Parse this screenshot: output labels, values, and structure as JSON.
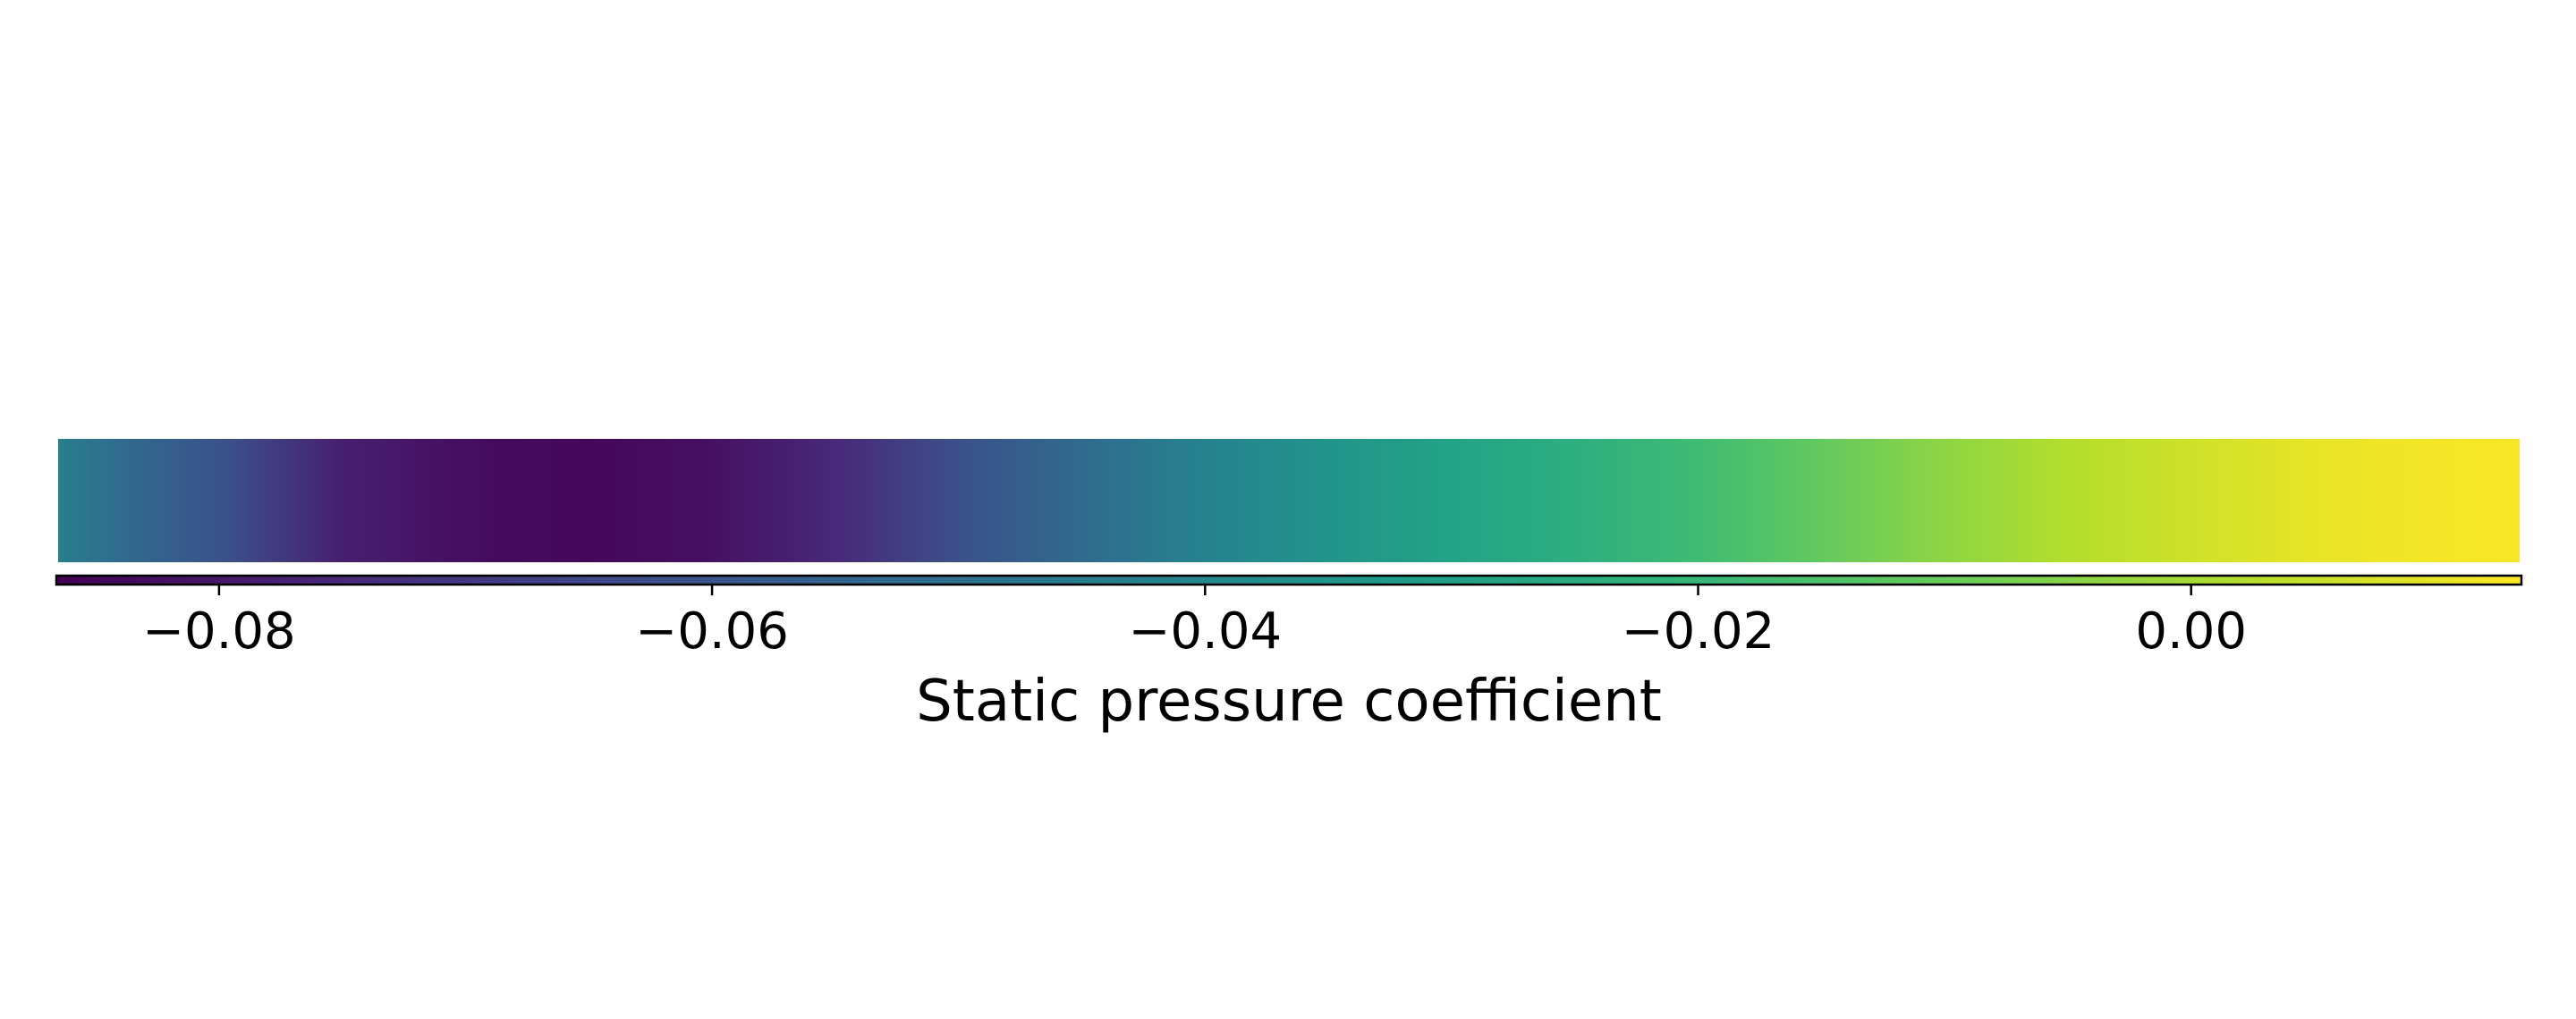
{
  "chart_data": {
    "type": "heatmap",
    "colormap": "viridis",
    "colorbar_label": "Static pressure coefficient",
    "xlim": [
      -0.0866,
      0.0134
    ],
    "xticks": [
      -0.08,
      -0.06,
      -0.04,
      -0.02,
      0.0
    ],
    "xtick_labels": [
      "−0.08",
      "−0.06",
      "−0.04",
      "−0.02",
      "0.00"
    ],
    "pressure_strip": {
      "x": [
        -0.0866,
        -0.084,
        -0.08,
        -0.075,
        -0.07,
        -0.065,
        -0.06,
        -0.055,
        -0.05,
        -0.045,
        -0.04,
        -0.035,
        -0.03,
        -0.025,
        -0.02,
        -0.015,
        -0.01,
        -0.005,
        0.0,
        0.005,
        0.01,
        0.0134
      ],
      "value": [
        -0.044,
        -0.052,
        -0.061,
        -0.078,
        -0.083,
        -0.085,
        -0.082,
        -0.075,
        -0.062,
        -0.052,
        -0.042,
        -0.035,
        -0.029,
        -0.024,
        -0.018,
        -0.011,
        -0.004,
        0.002,
        0.006,
        0.01,
        0.012,
        0.0125
      ]
    },
    "colors": {
      "viridis": [
        "#440154",
        "#482878",
        "#3e4989",
        "#31688e",
        "#26828e",
        "#1f9e89",
        "#35b779",
        "#6ece58",
        "#b5de2b",
        "#fde725"
      ],
      "outline": "#000000"
    }
  }
}
